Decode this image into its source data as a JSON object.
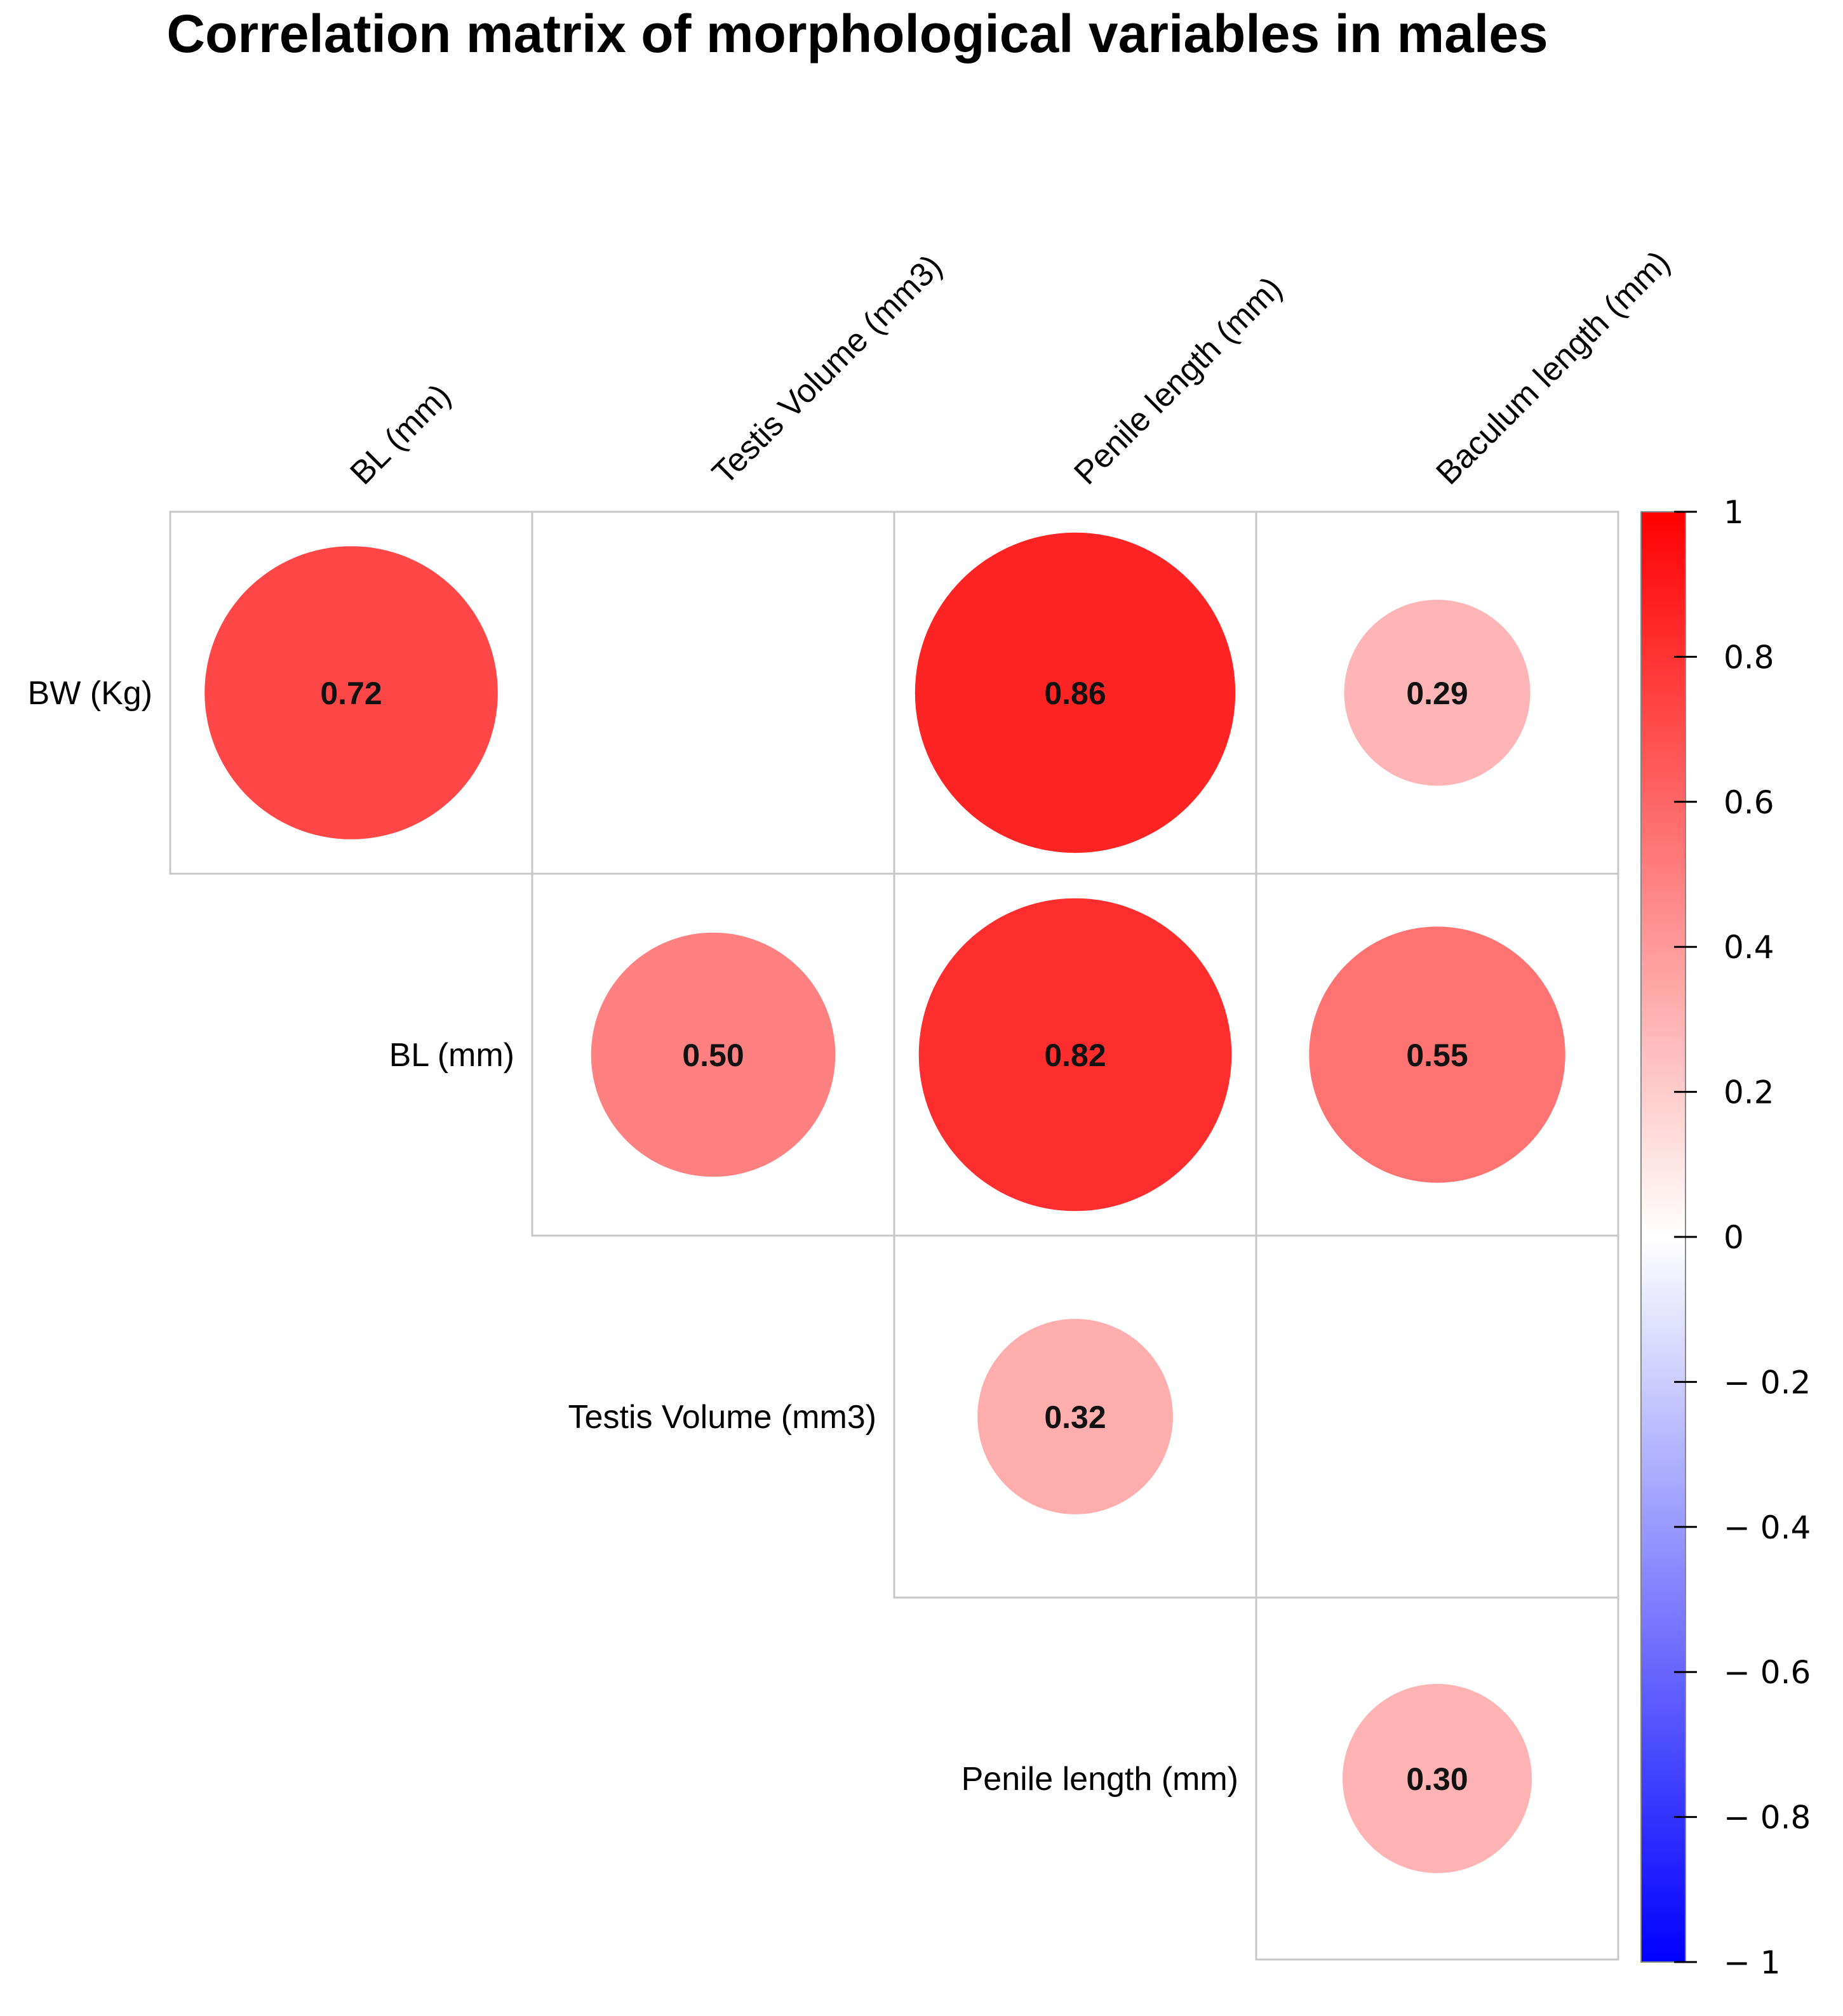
{
  "chart_data": {
    "type": "heatmap",
    "subtype": "correlation-matrix-upper-circles",
    "title": "Correlation matrix of morphological variables in males",
    "columns": [
      "BL (mm)",
      "Testis Volume (mm3)",
      "Penile length (mm)",
      "Baculum length (mm)"
    ],
    "rows": [
      "BW (Kg)",
      "BL (mm)",
      "Testis Volume (mm3)",
      "Penile length (mm)"
    ],
    "cells": [
      {
        "row": "BW (Kg)",
        "col": "BL (mm)",
        "value": 0.72,
        "label": "0.72"
      },
      {
        "row": "BW (Kg)",
        "col": "Testis Volume (mm3)",
        "value": null,
        "label": ""
      },
      {
        "row": "BW (Kg)",
        "col": "Penile length (mm)",
        "value": 0.86,
        "label": "0.86"
      },
      {
        "row": "BW (Kg)",
        "col": "Baculum length (mm)",
        "value": 0.29,
        "label": "0.29"
      },
      {
        "row": "BL (mm)",
        "col": "Testis Volume (mm3)",
        "value": 0.5,
        "label": "0.50"
      },
      {
        "row": "BL (mm)",
        "col": "Penile length (mm)",
        "value": 0.82,
        "label": "0.82"
      },
      {
        "row": "BL (mm)",
        "col": "Baculum length (mm)",
        "value": 0.55,
        "label": "0.55"
      },
      {
        "row": "Testis Volume (mm3)",
        "col": "Penile length (mm)",
        "value": 0.32,
        "label": "0.32"
      },
      {
        "row": "Testis Volume (mm3)",
        "col": "Baculum length (mm)",
        "value": null,
        "label": ""
      },
      {
        "row": "Penile length (mm)",
        "col": "Baculum length (mm)",
        "value": 0.3,
        "label": "0.30"
      }
    ],
    "color_scale": {
      "range": [
        -1,
        1
      ],
      "ticks": [
        1,
        0.8,
        0.6,
        0.4,
        0.2,
        0,
        -0.2,
        -0.4,
        -0.6,
        -0.8,
        -1
      ],
      "tick_labels": [
        "1",
        "0.8",
        "0.6",
        "0.4",
        "0.2",
        "0",
        "− 0.2",
        "− 0.4",
        "− 0.6",
        "− 0.8",
        "− 1"
      ],
      "low_color": "#0000ff",
      "mid_color": "#ffffff",
      "high_color": "#ff0000"
    },
    "legend_position": "right"
  }
}
